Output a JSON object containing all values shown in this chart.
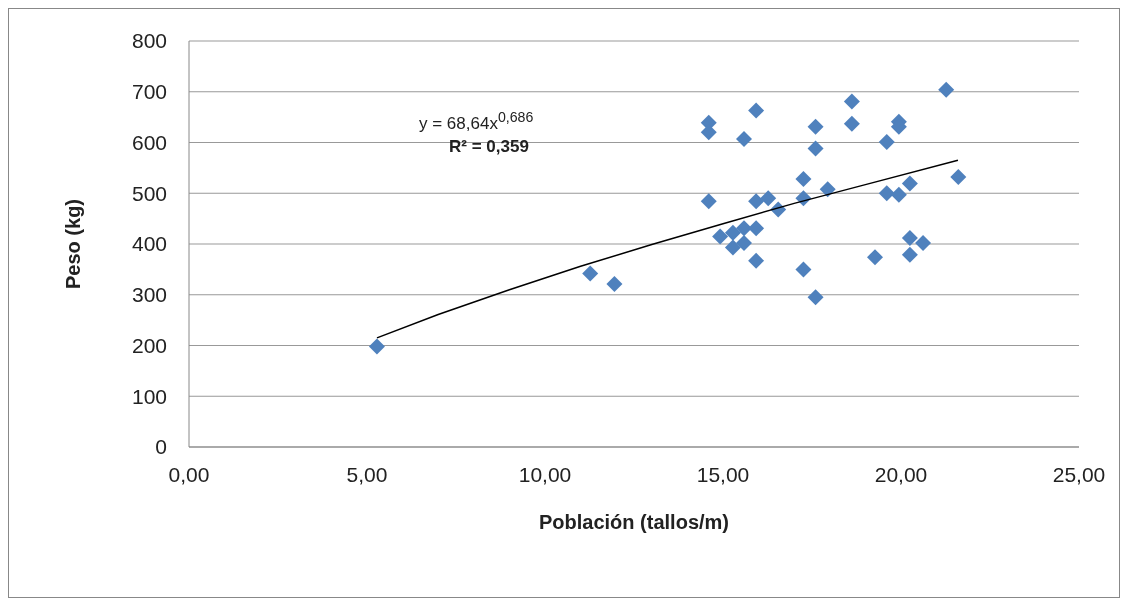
{
  "chart_data": {
    "type": "scatter",
    "xlabel": "Población (tallos/m)",
    "ylabel": "Peso (kg)",
    "xlim": [
      0,
      25
    ],
    "xticks": [
      {
        "value": 0,
        "label": "0,00"
      },
      {
        "value": 5,
        "label": "5,00"
      },
      {
        "value": 10,
        "label": "10,00"
      },
      {
        "value": 15,
        "label": "15,00"
      },
      {
        "value": 20,
        "label": "20,00"
      },
      {
        "value": 25,
        "label": "25,00"
      }
    ],
    "ylim": [
      0,
      800
    ],
    "yticks": [
      0,
      100,
      200,
      300,
      400,
      500,
      600,
      700,
      800
    ],
    "grid": "y",
    "legend": false,
    "annotations": [
      "y = 68,64x$^{0,686}$",
      "R² = 0,359"
    ],
    "series": [
      {
        "marker": "diamond",
        "color": "#4f81bd",
        "x": [
          5.28,
          11.27,
          11.95,
          21.27,
          18.62,
          15.93,
          14.6,
          14.6,
          15.59,
          17.6,
          18.62,
          19.94,
          19.94,
          19.6,
          17.6,
          17.26,
          17.94,
          21.61,
          20.25,
          19.6,
          19.94,
          14.6,
          15.93,
          16.27,
          16.55,
          17.26,
          14.92,
          15.28,
          15.59,
          15.93,
          15.28,
          15.59,
          15.93,
          17.26,
          17.6,
          19.27,
          20.25,
          20.62,
          20.25
        ],
        "values": [
          198,
          342,
          321,
          704,
          681,
          663,
          639,
          620,
          607,
          631,
          637,
          641,
          631,
          601,
          588,
          528,
          508,
          532,
          519,
          500,
          497,
          484,
          484,
          490,
          468,
          490,
          415,
          422,
          431,
          431,
          393,
          402,
          367,
          350,
          295,
          374,
          412,
          402,
          379
        ]
      },
      {
        "type": "line",
        "marker": "none",
        "color": "#000000",
        "x": [
          5.28,
          7,
          9,
          11,
          13,
          15,
          17,
          19,
          21.6
        ],
        "values": [
          215,
          261,
          310,
          356,
          399,
          440,
          480,
          517,
          565
        ]
      }
    ]
  }
}
